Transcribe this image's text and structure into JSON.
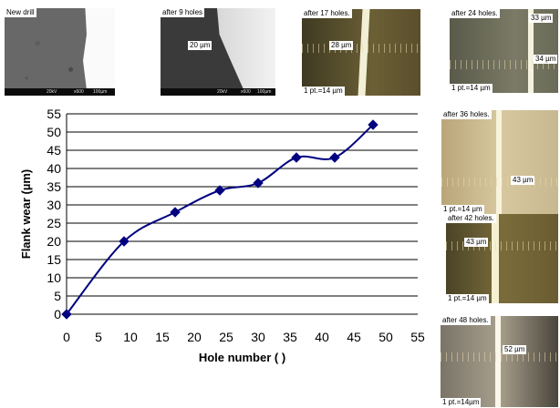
{
  "micrographs": {
    "new_drill": {
      "caption": "New drill",
      "scale_bar": {
        "kv": "20kV",
        "mag": "x600",
        "scale": "100µm"
      }
    },
    "holes_9": {
      "caption": "after 9 holes",
      "measurement": "20 µm",
      "scale_bar": {
        "kv": "20kV",
        "mag": "x600",
        "scale": "100µm"
      }
    },
    "holes_17": {
      "caption": "after 17 holes.",
      "measurement": "28 µm",
      "scale_note": "1 pt.=14 µm"
    },
    "holes_24": {
      "caption": "after 24 holes.",
      "measurement_1": "33 µm",
      "measurement_2": "34 µm",
      "scale_note": "1 pt.=14 µm"
    },
    "holes_36": {
      "caption": "after 36 holes.",
      "measurement": "43 µm",
      "scale_note": "1 pt.=14 µm"
    },
    "holes_42": {
      "caption": "after 42 holes.",
      "measurement": "43 µm",
      "scale_note": "1 pt.=14 µm"
    },
    "holes_48": {
      "caption": "after 48 holes.",
      "measurement": "52 µm",
      "scale_note": "1 pt.=14µm"
    }
  },
  "chart_data": {
    "type": "line",
    "x": [
      0,
      9,
      17,
      24,
      30,
      36,
      42,
      48
    ],
    "series": [
      {
        "values": [
          0,
          20,
          28,
          34,
          36,
          43,
          43,
          52
        ],
        "color": "#000080",
        "marker": "diamond",
        "smooth": true
      }
    ],
    "xlabel": "Hole number ( )",
    "ylabel": "Flank wear (µm)",
    "xlim": [
      0,
      55
    ],
    "ylim": [
      0,
      55
    ],
    "xticks": [
      0,
      5,
      10,
      15,
      20,
      25,
      30,
      35,
      40,
      45,
      50,
      55
    ],
    "yticks": [
      0,
      5,
      10,
      15,
      20,
      25,
      30,
      35,
      40,
      45,
      50,
      55
    ],
    "grid": "horizontal"
  }
}
